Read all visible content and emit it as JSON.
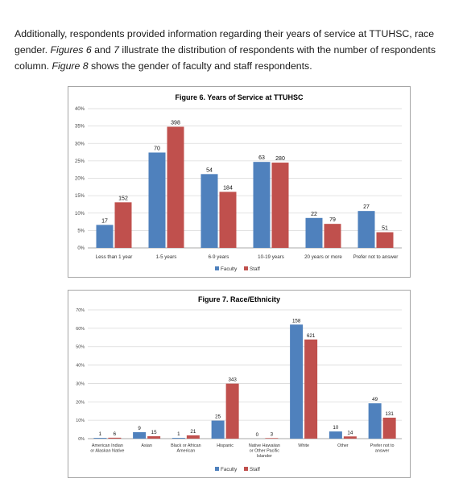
{
  "intro": {
    "p1": "Additionally, respondents provided information regarding their years of service at TTUHSC, race",
    "p2a": "gender. ",
    "p2b": "Figures 6",
    "p2c": " and ",
    "p2d": "7",
    "p2e": " illustrate the distribution of respondents with the number of respondents",
    "p3a": "column. ",
    "p3b": "Figure 8",
    "p3c": " shows the gender of faculty and staff respondents."
  },
  "colors": {
    "faculty": "#4f81bd",
    "staff": "#c0504d"
  },
  "chart_data": [
    {
      "type": "bar",
      "title": "Figure 6. Years of Service at TTUHSC",
      "categories": [
        "Less than 1 year",
        "1-5 years",
        "6-9 years",
        "10-19 years",
        "20 years or more",
        "Prefer not to answer"
      ],
      "yticks": [
        "0%",
        "5%",
        "10%",
        "15%",
        "20%",
        "25%",
        "30%",
        "35%",
        "40%"
      ],
      "ylim": [
        0,
        40
      ],
      "legend": "bottom",
      "series": [
        {
          "name": "Faculty",
          "percent": [
            6.6,
            27.4,
            21.2,
            24.7,
            8.6,
            10.6
          ],
          "labels": [
            "17",
            "70",
            "54",
            "63",
            "22",
            "27"
          ]
        },
        {
          "name": "Staff",
          "percent": [
            13.1,
            34.8,
            16.1,
            24.5,
            6.9,
            4.5
          ],
          "labels": [
            "152",
            "398",
            "184",
            "280",
            "79",
            "51"
          ]
        }
      ]
    },
    {
      "type": "bar",
      "title": "Figure 7. Race/Ethnicity",
      "categories": [
        [
          "American Indian",
          "or Alaskan Native"
        ],
        [
          "Asian"
        ],
        [
          "Black or African",
          "American"
        ],
        [
          "Hispanic"
        ],
        [
          "Native Hawaiian",
          "or Other Pacific",
          "Islander"
        ],
        [
          "White"
        ],
        [
          "Other"
        ],
        [
          "Prefer not to",
          "answer"
        ]
      ],
      "yticks": [
        "0%",
        "10%",
        "20%",
        "30%",
        "40%",
        "50%",
        "60%",
        "70%"
      ],
      "ylim": [
        0,
        70
      ],
      "legend": "bottom",
      "series": [
        {
          "name": "Faculty",
          "percent": [
            0.4,
            3.5,
            0.4,
            9.8,
            0,
            62.0,
            3.9,
            19.2
          ],
          "labels": [
            "1",
            "9",
            "1",
            "25",
            "0",
            "158",
            "10",
            "49"
          ]
        },
        {
          "name": "Staff",
          "percent": [
            0.5,
            1.3,
            1.8,
            29.9,
            0.3,
            53.9,
            1.2,
            11.4
          ],
          "labels": [
            "6",
            "15",
            "21",
            "343",
            "3",
            "621",
            "14",
            "131"
          ]
        }
      ]
    }
  ]
}
